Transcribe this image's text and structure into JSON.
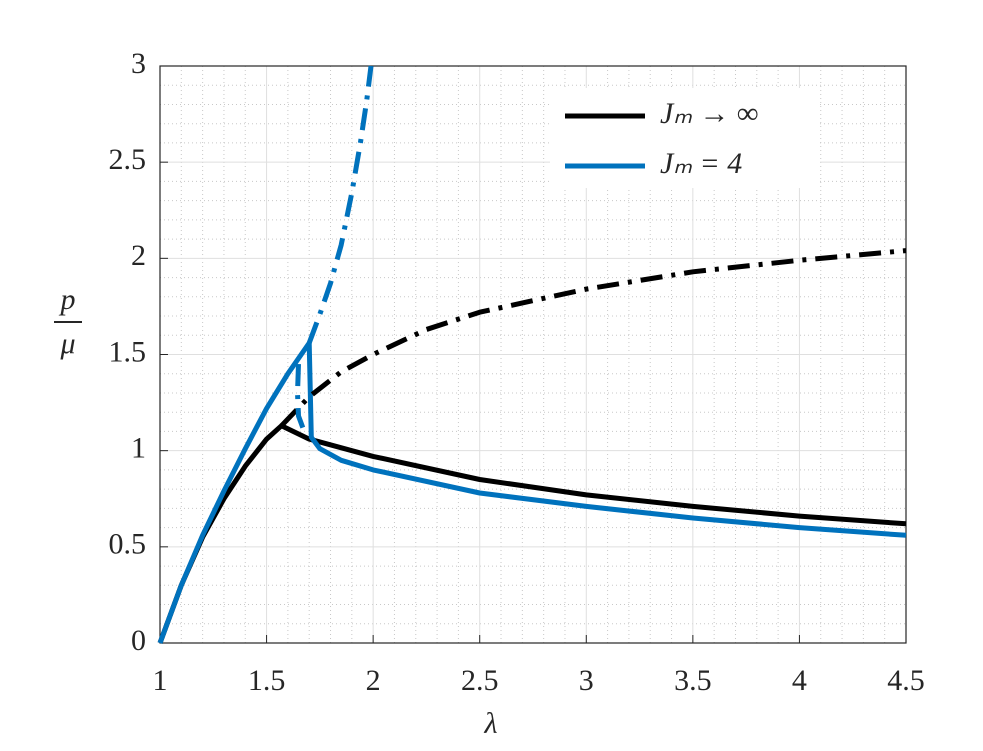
{
  "chart_data": {
    "type": "line",
    "xlabel": "λ",
    "ylabel_numerator": "p",
    "ylabel_denominator": "μ",
    "xlim": [
      1,
      4.5
    ],
    "ylim": [
      0,
      3
    ],
    "xticks": [
      1,
      1.5,
      2,
      2.5,
      3,
      3.5,
      4,
      4.5
    ],
    "yticks": [
      0,
      0.5,
      1,
      1.5,
      2,
      2.5,
      3
    ],
    "xminorticks": [
      1.1,
      1.2,
      1.3,
      1.4,
      1.6,
      1.7,
      1.8,
      1.9,
      2.1,
      2.2,
      2.3,
      2.4,
      2.6,
      2.7,
      2.8,
      2.9,
      3.1,
      3.2,
      3.3,
      3.4,
      3.6,
      3.7,
      3.8,
      3.9,
      4.1,
      4.2,
      4.3,
      4.4
    ],
    "yminorticks": [
      0.1,
      0.2,
      0.3,
      0.4,
      0.6,
      0.7,
      0.8,
      0.9,
      1.1,
      1.2,
      1.3,
      1.4,
      1.6,
      1.7,
      1.8,
      1.9,
      2.1,
      2.2,
      2.3,
      2.4,
      2.6,
      2.7,
      2.8,
      2.9
    ],
    "grid": true,
    "minor_grid": true,
    "legend_position": "upper right",
    "series": [
      {
        "name": "Jₘ → ∞",
        "color": "#000000",
        "style": "solid",
        "x": [
          1,
          1.1,
          1.2,
          1.3,
          1.4,
          1.5,
          1.57,
          1.7,
          2,
          2.5,
          3,
          3.5,
          4,
          4.5
        ],
        "values": [
          0,
          0.3,
          0.55,
          0.75,
          0.92,
          1.06,
          1.13,
          1.06,
          0.97,
          0.85,
          0.77,
          0.71,
          0.66,
          0.62
        ]
      },
      {
        "name": "Jₘ = 4",
        "color": "#0072bd",
        "style": "solid",
        "x": [
          1,
          1.1,
          1.2,
          1.3,
          1.4,
          1.5,
          1.6,
          1.7,
          1.71,
          1.75,
          1.85,
          2,
          2.5,
          3,
          3.5,
          4,
          4.5
        ],
        "values": [
          0,
          0.3,
          0.56,
          0.79,
          1.01,
          1.22,
          1.4,
          1.56,
          1.07,
          1.01,
          0.95,
          0.9,
          0.78,
          0.71,
          0.65,
          0.6,
          0.56
        ]
      },
      {
        "color": "#000000",
        "style": "dashdot",
        "x": [
          1.57,
          1.7,
          1.85,
          2,
          2.25,
          2.5,
          3,
          3.5,
          4,
          4.5
        ],
        "values": [
          1.13,
          1.28,
          1.41,
          1.5,
          1.63,
          1.72,
          1.84,
          1.93,
          1.99,
          2.04
        ]
      },
      {
        "color": "#0072bd",
        "style": "dashdot",
        "x": [
          1.65,
          1.645,
          1.65,
          1.67,
          null,
          1.7,
          1.75,
          1.8,
          1.85,
          1.9,
          1.94,
          1.97,
          1.99
        ],
        "values": [
          1.45,
          1.3,
          1.18,
          1.12,
          null,
          1.56,
          1.71,
          1.87,
          2.07,
          2.34,
          2.6,
          2.82,
          3
        ]
      }
    ]
  }
}
